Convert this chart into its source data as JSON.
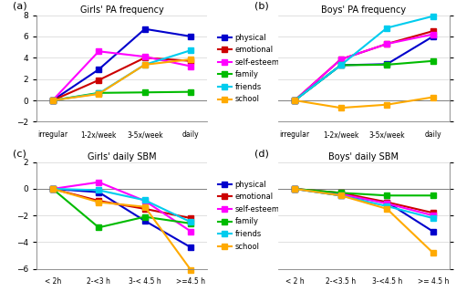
{
  "panel_a": {
    "title": "Girls' PA frequency",
    "label": "(a)",
    "x_labels": [
      "irregular",
      "1-2x/week",
      "3-5x/week",
      "daily"
    ],
    "ylim": [
      -2,
      8
    ],
    "yticks": [
      -2,
      0,
      2,
      4,
      6,
      8
    ],
    "series": {
      "physical": [
        0,
        2.9,
        6.7,
        6.0
      ],
      "emotional": [
        0,
        1.9,
        4.0,
        3.7
      ],
      "self-esteem": [
        0,
        4.6,
        4.1,
        3.2
      ],
      "family": [
        0,
        0.7,
        0.75,
        0.8
      ],
      "friends": [
        0,
        0.65,
        3.35,
        4.7
      ],
      "school": [
        0,
        0.6,
        3.35,
        3.85
      ]
    }
  },
  "panel_b": {
    "title": "Boys' PA frequency",
    "label": "(b)",
    "x_labels": [
      "irregular",
      "1-2x/week",
      "3-5x/week",
      "daily"
    ],
    "ylim": [
      -2,
      8
    ],
    "yticks": [
      -2,
      0,
      2,
      4,
      6,
      8
    ],
    "series": {
      "physical": [
        0,
        3.3,
        3.4,
        6.0
      ],
      "emotional": [
        0,
        3.85,
        5.3,
        6.5
      ],
      "self-esteem": [
        0,
        3.85,
        5.3,
        6.2
      ],
      "family": [
        0,
        3.3,
        3.35,
        3.7
      ],
      "friends": [
        0,
        3.3,
        6.8,
        7.9
      ],
      "school": [
        0,
        -0.7,
        -0.4,
        0.3
      ]
    }
  },
  "panel_c": {
    "title": "Girls' daily SBM",
    "label": "(c)",
    "x_labels": [
      "< 2h",
      "2-<3 h",
      "3-< 4.5 h",
      ">=4.5 h"
    ],
    "ylim": [
      -6,
      2
    ],
    "yticks": [
      -6,
      -4,
      -2,
      0,
      2
    ],
    "series": {
      "physical": [
        0,
        -0.25,
        -2.4,
        -4.4
      ],
      "emotional": [
        0,
        -0.9,
        -1.5,
        -2.2
      ],
      "self-esteem": [
        0,
        0.5,
        -0.9,
        -3.2
      ],
      "family": [
        0,
        -2.9,
        -2.1,
        -2.6
      ],
      "friends": [
        0,
        -0.1,
        -0.85,
        -2.5
      ],
      "school": [
        0,
        -1.0,
        -1.35,
        -6.1
      ]
    }
  },
  "panel_d": {
    "title": "Boys' daily SBM",
    "label": "(d)",
    "x_labels": [
      "< 2 h",
      "2-<3.5 h",
      "3-<4.5 h",
      ">= 4.5 h"
    ],
    "ylim": [
      -6,
      2
    ],
    "yticks": [
      -6,
      -4,
      -2,
      0,
      2
    ],
    "series": {
      "physical": [
        0,
        -0.5,
        -1.0,
        -3.2
      ],
      "emotional": [
        0,
        -0.3,
        -1.0,
        -1.8
      ],
      "self-esteem": [
        0,
        -0.4,
        -1.1,
        -2.0
      ],
      "family": [
        0,
        -0.3,
        -0.5,
        -0.5
      ],
      "friends": [
        0,
        -0.5,
        -1.3,
        -2.2
      ],
      "school": [
        0,
        -0.5,
        -1.5,
        -4.8
      ]
    }
  },
  "colors": {
    "physical": "#0000CC",
    "emotional": "#CC0000",
    "self-esteem": "#FF00FF",
    "family": "#00BB00",
    "friends": "#00CCEE",
    "school": "#FFAA00"
  },
  "legend_labels": [
    "physical",
    "emotional",
    "self-esteem",
    "family",
    "friends",
    "school"
  ],
  "marker": "s",
  "linewidth": 1.5,
  "markersize": 4
}
